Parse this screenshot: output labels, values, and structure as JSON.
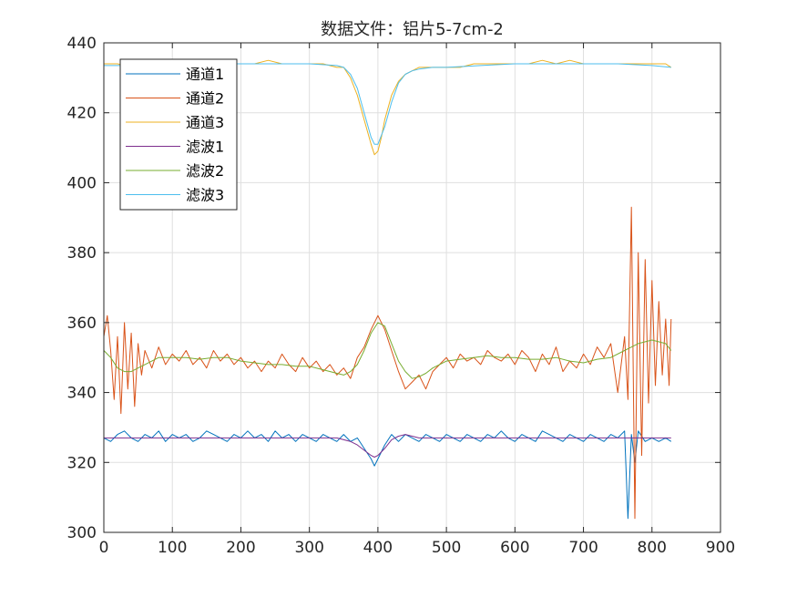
{
  "chart_data": {
    "type": "line",
    "title": "数据文件：铝片5-7cm-2",
    "xlabel": "",
    "ylabel": "",
    "xlim": [
      0,
      900
    ],
    "ylim": [
      300,
      440
    ],
    "xticks": [
      0,
      100,
      200,
      300,
      400,
      500,
      600,
      700,
      800,
      900
    ],
    "yticks": [
      300,
      320,
      340,
      360,
      380,
      400,
      420,
      440
    ],
    "grid": true,
    "legend_position": "top-left",
    "series": [
      {
        "name": "通道1",
        "color": "#0072BD",
        "x": [
          0,
          10,
          20,
          30,
          40,
          50,
          60,
          70,
          80,
          90,
          100,
          110,
          120,
          130,
          140,
          150,
          160,
          170,
          180,
          190,
          200,
          210,
          220,
          230,
          240,
          250,
          260,
          270,
          280,
          290,
          300,
          310,
          320,
          330,
          340,
          350,
          360,
          370,
          380,
          390,
          395,
          400,
          410,
          420,
          430,
          440,
          450,
          460,
          470,
          480,
          490,
          500,
          510,
          520,
          530,
          540,
          550,
          560,
          570,
          580,
          590,
          600,
          610,
          620,
          630,
          640,
          650,
          660,
          670,
          680,
          690,
          700,
          710,
          720,
          730,
          740,
          750,
          760,
          765,
          770,
          775,
          780,
          790,
          800,
          810,
          820,
          828
        ],
        "values": [
          327,
          326,
          328,
          329,
          327,
          326,
          328,
          327,
          329,
          326,
          328,
          327,
          328,
          326,
          327,
          329,
          328,
          327,
          326,
          328,
          327,
          329,
          327,
          328,
          326,
          329,
          327,
          328,
          326,
          328,
          327,
          326,
          328,
          327,
          326,
          328,
          326,
          327,
          324,
          321,
          319,
          321,
          325,
          328,
          326,
          328,
          327,
          326,
          328,
          327,
          326,
          328,
          327,
          326,
          328,
          327,
          326,
          328,
          327,
          329,
          327,
          326,
          328,
          327,
          326,
          329,
          328,
          327,
          326,
          328,
          327,
          326,
          328,
          327,
          326,
          328,
          327,
          329,
          304,
          328,
          320,
          329,
          326,
          327,
          326,
          327,
          326
        ]
      },
      {
        "name": "通道2",
        "color": "#D95319",
        "x": [
          0,
          5,
          10,
          15,
          20,
          25,
          30,
          35,
          40,
          45,
          50,
          55,
          60,
          70,
          80,
          90,
          100,
          110,
          120,
          130,
          140,
          150,
          160,
          170,
          180,
          190,
          200,
          210,
          220,
          230,
          240,
          250,
          260,
          270,
          280,
          290,
          300,
          310,
          320,
          330,
          340,
          350,
          360,
          370,
          380,
          390,
          400,
          410,
          420,
          430,
          440,
          450,
          460,
          470,
          480,
          490,
          500,
          510,
          520,
          530,
          540,
          550,
          560,
          570,
          580,
          590,
          600,
          610,
          620,
          630,
          640,
          650,
          660,
          670,
          680,
          690,
          700,
          710,
          720,
          730,
          740,
          750,
          760,
          765,
          770,
          775,
          780,
          785,
          790,
          795,
          800,
          805,
          810,
          815,
          820,
          825,
          828
        ],
        "values": [
          356,
          362,
          352,
          338,
          356,
          334,
          360,
          341,
          357,
          336,
          354,
          345,
          352,
          347,
          353,
          348,
          351,
          349,
          352,
          348,
          350,
          347,
          352,
          349,
          351,
          348,
          350,
          347,
          349,
          346,
          349,
          347,
          351,
          348,
          346,
          350,
          347,
          349,
          346,
          348,
          345,
          347,
          344,
          350,
          353,
          358,
          362,
          358,
          352,
          346,
          341,
          343,
          345,
          341,
          346,
          348,
          350,
          347,
          351,
          349,
          350,
          348,
          352,
          350,
          349,
          351,
          348,
          352,
          350,
          346,
          351,
          348,
          353,
          346,
          349,
          347,
          351,
          348,
          353,
          350,
          354,
          340,
          356,
          338,
          393,
          304,
          380,
          322,
          378,
          337,
          372,
          342,
          366,
          345,
          361,
          342,
          361
        ]
      },
      {
        "name": "通道3",
        "color": "#EDB120",
        "x": [
          0,
          20,
          40,
          60,
          80,
          100,
          120,
          140,
          160,
          180,
          200,
          220,
          240,
          260,
          280,
          300,
          320,
          340,
          350,
          360,
          370,
          380,
          390,
          395,
          400,
          405,
          410,
          420,
          430,
          440,
          450,
          460,
          480,
          500,
          520,
          540,
          560,
          580,
          600,
          620,
          640,
          660,
          680,
          700,
          720,
          740,
          760,
          780,
          800,
          820,
          828
        ],
        "values": [
          434,
          434,
          433,
          434,
          434,
          435,
          434,
          434,
          434,
          434,
          434,
          434,
          435,
          434,
          434,
          434,
          434,
          433,
          433,
          430,
          425,
          418,
          411,
          408,
          409,
          413,
          418,
          425,
          429,
          431,
          432,
          433,
          433,
          433,
          433,
          434,
          434,
          434,
          434,
          434,
          435,
          434,
          435,
          434,
          434,
          434,
          434,
          434,
          434,
          434,
          433
        ]
      },
      {
        "name": "滤波1",
        "color": "#7E2F8E",
        "x": [
          0,
          50,
          100,
          150,
          200,
          250,
          300,
          340,
          360,
          370,
          380,
          390,
          395,
          400,
          410,
          420,
          430,
          440,
          450,
          460,
          480,
          500,
          550,
          600,
          650,
          700,
          750,
          800,
          828
        ],
        "values": [
          327,
          327,
          327,
          327,
          327,
          327,
          327,
          327,
          326,
          325,
          323.5,
          322,
          321.5,
          322,
          324,
          326.5,
          327.5,
          328,
          327.5,
          327,
          327,
          327,
          327,
          327,
          327,
          327,
          327,
          327,
          327
        ]
      },
      {
        "name": "滤波2",
        "color": "#77AC30",
        "x": [
          0,
          10,
          20,
          30,
          40,
          50,
          60,
          70,
          80,
          100,
          120,
          140,
          160,
          180,
          200,
          220,
          240,
          260,
          280,
          300,
          320,
          340,
          350,
          360,
          370,
          380,
          390,
          400,
          410,
          420,
          430,
          440,
          450,
          460,
          470,
          480,
          490,
          500,
          520,
          540,
          560,
          580,
          600,
          620,
          640,
          660,
          680,
          700,
          720,
          740,
          760,
          780,
          800,
          820,
          828
        ],
        "values": [
          352,
          350,
          347,
          346,
          346,
          347,
          348,
          349,
          350,
          350,
          350,
          349.5,
          350,
          350,
          349,
          348.5,
          348,
          348,
          347.5,
          347.5,
          346.5,
          345.5,
          345,
          346,
          348,
          352,
          357,
          360,
          359,
          354,
          349,
          346,
          344,
          344.5,
          345.5,
          347,
          348,
          349,
          349.5,
          350,
          350.5,
          350,
          350,
          349.5,
          349.5,
          350,
          349,
          348.5,
          349.5,
          350,
          352,
          354,
          355,
          354,
          352
        ]
      },
      {
        "name": "滤波3",
        "color": "#4DBEEE",
        "x": [
          0,
          50,
          100,
          150,
          200,
          250,
          300,
          340,
          350,
          360,
          370,
          380,
          390,
          395,
          400,
          410,
          420,
          430,
          440,
          450,
          460,
          480,
          500,
          550,
          600,
          650,
          700,
          750,
          800,
          828
        ],
        "values": [
          433.5,
          433.5,
          434,
          434,
          434,
          434,
          434,
          433.5,
          433,
          431,
          427,
          420,
          413,
          411,
          411,
          416,
          423,
          428.5,
          431,
          432,
          432.5,
          433,
          433,
          433.5,
          434,
          434,
          434,
          434,
          433.5,
          433
        ]
      }
    ]
  }
}
